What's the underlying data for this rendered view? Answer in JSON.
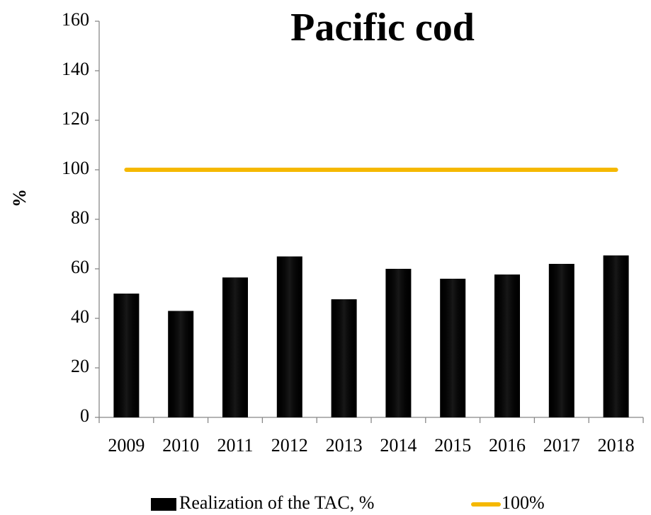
{
  "chart_data": {
    "type": "bar",
    "title": "Pacific cod",
    "y_label": "%",
    "categories": [
      "2009",
      "2010",
      "2011",
      "2012",
      "2013",
      "2014",
      "2015",
      "2016",
      "2017",
      "2018"
    ],
    "series": [
      {
        "name": "Realization of the TAC, %",
        "type": "bar",
        "color": "#000000",
        "values": [
          50,
          43,
          56.5,
          65,
          47.7,
          60,
          56,
          57.7,
          62,
          65.4
        ]
      },
      {
        "name": "100%",
        "type": "line",
        "color": "#f5b800",
        "values": [
          100,
          100,
          100,
          100,
          100,
          100,
          100,
          100,
          100,
          100
        ]
      }
    ],
    "ylim": [
      0,
      160
    ],
    "yticks": [
      0,
      20,
      40,
      60,
      80,
      100,
      120,
      140,
      160
    ],
    "grid": false,
    "legend": "bottom"
  }
}
